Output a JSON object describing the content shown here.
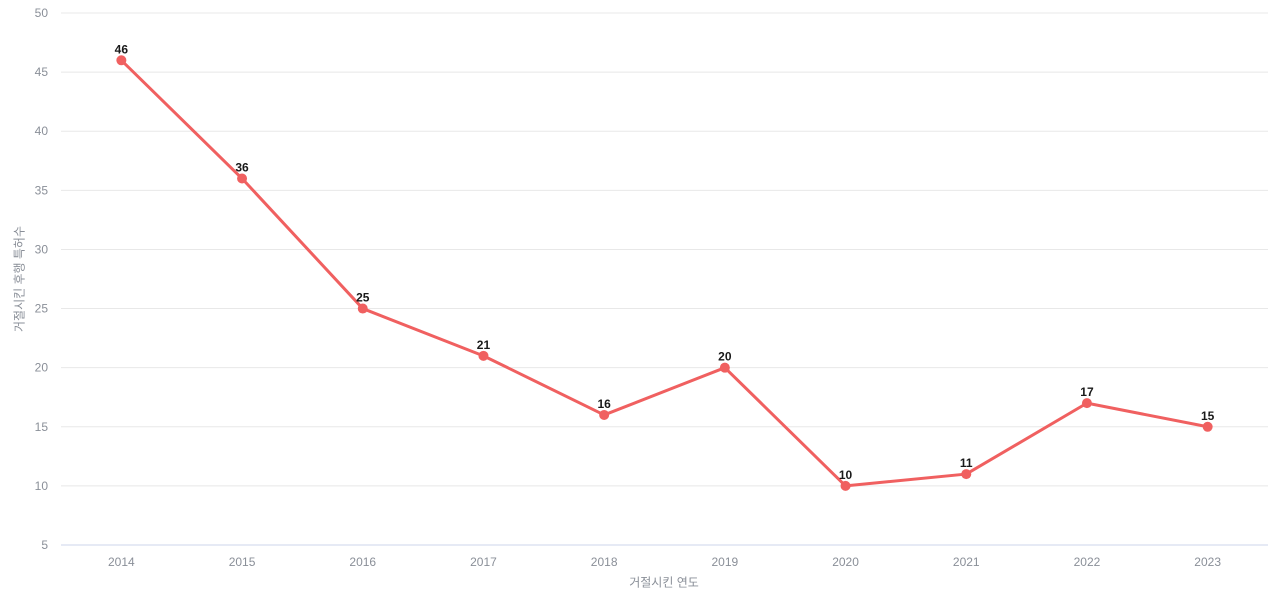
{
  "chart_data": {
    "type": "line",
    "title": "",
    "categories": [
      "2014",
      "2015",
      "2016",
      "2017",
      "2018",
      "2019",
      "2020",
      "2021",
      "2022",
      "2023"
    ],
    "series": [
      {
        "name": "거절시킨 후행 특허수",
        "values": [
          46,
          36,
          25,
          21,
          16,
          20,
          10,
          11,
          17,
          15
        ]
      }
    ],
    "xlabel": "거절시킨 연도",
    "ylabel": "거절시킨 후행 특허수",
    "ylim": [
      5,
      50
    ],
    "ytick_step": 5,
    "yticks": [
      5,
      10,
      15,
      20,
      25,
      30,
      35,
      40,
      45,
      50
    ],
    "grid": true,
    "legend_position": "none",
    "value_labels_shown": true,
    "colors": {
      "line": "#f06060",
      "marker": "#f06060",
      "gridline": "#e8e8e8",
      "baseline": "#ccd6eb",
      "tick_label": "#8a8f98",
      "value_label": "#1a1a1a",
      "background": "#ffffff"
    }
  }
}
